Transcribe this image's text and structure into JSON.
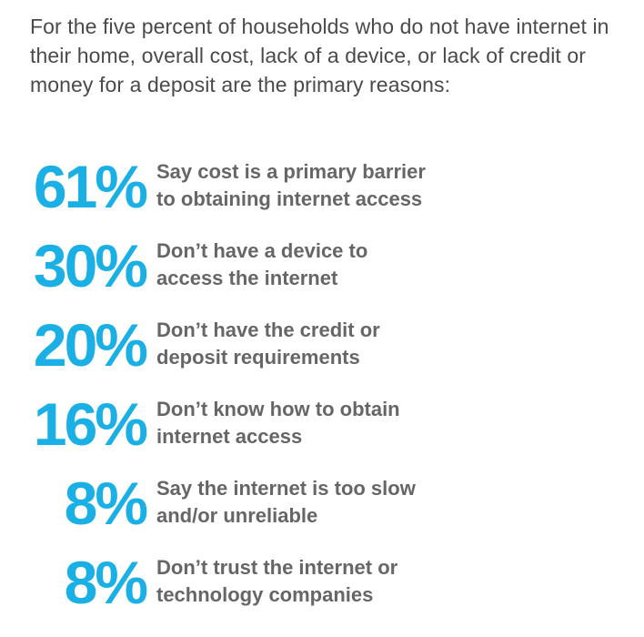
{
  "intro": "For the five percent of households who do not have internet in their home, overall cost, lack of a device, or lack of credit or money for a deposit are the primary reasons:",
  "stats": [
    {
      "value": "61%",
      "text": "Say cost is a primary barrier\nto obtaining internet access"
    },
    {
      "value": "30%",
      "text": "Don’t have a device to\naccess the internet"
    },
    {
      "value": "20%",
      "text": "Don’t have the credit or\ndeposit requirements"
    },
    {
      "value": "16%",
      "text": "Don’t know how to obtain\ninternet access"
    },
    {
      "value": "8%",
      "text": "Say the internet is too slow\nand/or unreliable"
    },
    {
      "value": "8%",
      "text": "Don’t trust the internet or\ntechnology companies"
    }
  ],
  "colors": {
    "accent": "#1ab0e6",
    "body_text": "#4a4a4a",
    "stat_text": "#666666"
  }
}
